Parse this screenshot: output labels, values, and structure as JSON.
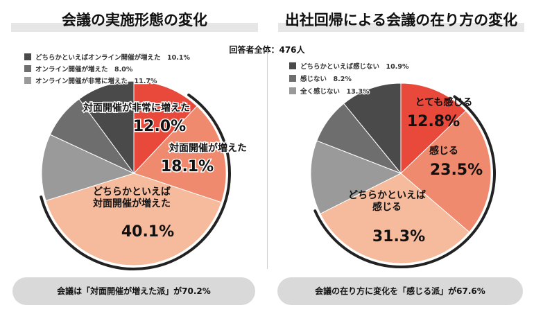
{
  "respondents_label": "回答者全体：476人",
  "colors": {
    "red": "#e8493a",
    "salmon": "#ef8a6e",
    "peach": "#f6bb9c",
    "dark": "#4a4a4a",
    "mid": "#6e6e6e",
    "light": "#9a9a9a"
  },
  "chart_data": [
    {
      "type": "pie",
      "title": "会議の実施形態の変化",
      "summary": "会議は「対面開催が増えた派」が70.2%",
      "slices": [
        {
          "label": "対面開催が非常に増えた",
          "value": 12.0,
          "value_text": "12.0%",
          "color": "#e8493a",
          "label_style": "red",
          "legend": false
        },
        {
          "label": "対面開催が増えた",
          "value": 18.1,
          "value_text": "18.1%",
          "color": "#ef8a6e",
          "label_style": "red",
          "legend": false
        },
        {
          "label": "どちらかといえば\n対面開催が増えた",
          "value": 40.1,
          "value_text": "40.1%",
          "color": "#f6bb9c",
          "label_style": "dark",
          "legend": false
        },
        {
          "label": "オンライン開催が非常に増えた",
          "value": 11.7,
          "value_text": "11.7%",
          "color": "#9a9a9a",
          "legend": true
        },
        {
          "label": "オンライン開催が増えた",
          "value": 8.0,
          "value_text": "8.0%",
          "color": "#6e6e6e",
          "legend": true
        },
        {
          "label": "どちらかといえばオンライン開催が増えた",
          "value": 10.1,
          "value_text": "10.1%",
          "color": "#4a4a4a",
          "legend": true
        }
      ]
    },
    {
      "type": "pie",
      "title": "出社回帰による会議の在り方の変化",
      "summary": "会議の在り方に変化を「感じる派」が67.6%",
      "slices": [
        {
          "label": "とても感じる",
          "value": 12.8,
          "value_text": "12.8%",
          "color": "#e8493a",
          "label_style": "dark",
          "legend": false
        },
        {
          "label": "感じる",
          "value": 23.5,
          "value_text": "23.5%",
          "color": "#ef8a6e",
          "label_style": "dark",
          "legend": false
        },
        {
          "label": "どちらかといえば\n感じる",
          "value": 31.3,
          "value_text": "31.3%",
          "color": "#f6bb9c",
          "label_style": "dark",
          "legend": false
        },
        {
          "label": "全く感じない",
          "value": 13.3,
          "value_text": "13.3%",
          "color": "#9a9a9a",
          "legend": true
        },
        {
          "label": "感じない",
          "value": 8.2,
          "value_text": "8.2%",
          "color": "#6e6e6e",
          "legend": true
        },
        {
          "label": "どちらかといえば感じない",
          "value": 10.9,
          "value_text": "10.9%",
          "color": "#4a4a4a",
          "legend": true
        }
      ]
    }
  ]
}
